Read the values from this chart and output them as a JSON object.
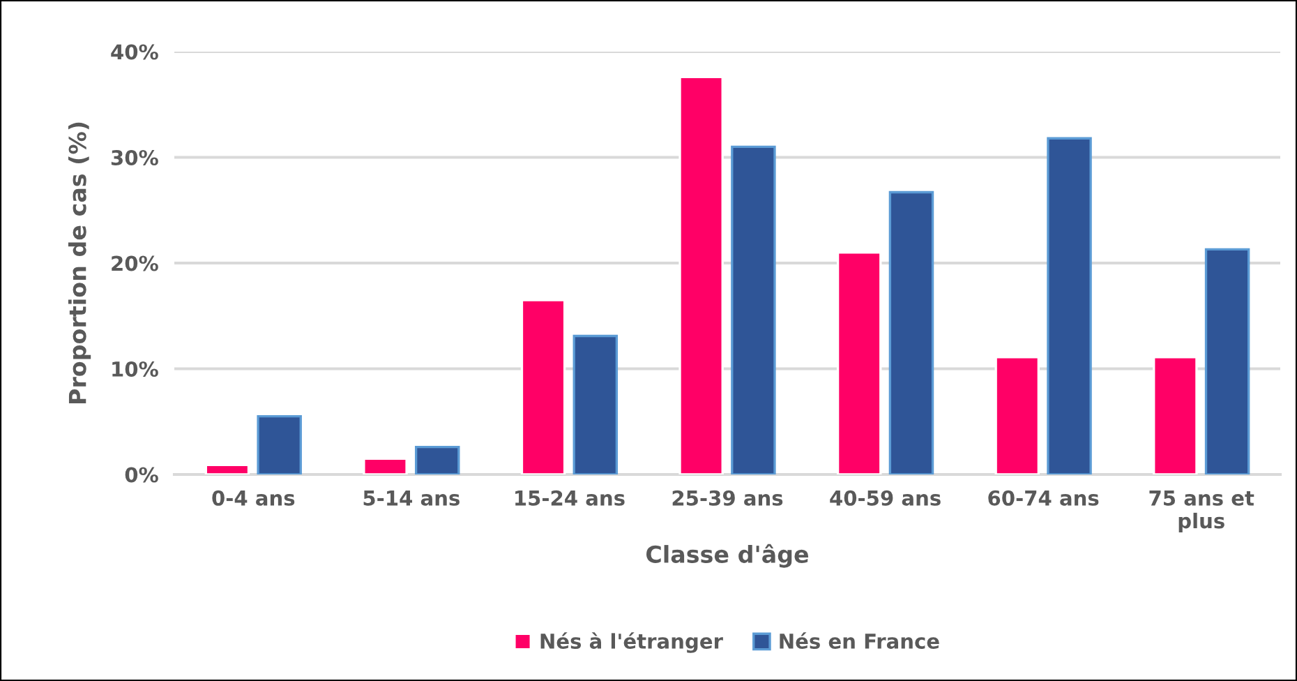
{
  "chart_data": {
    "type": "bar",
    "xlabel": "Classe d'âge",
    "ylabel": "Proportion de cas (%)",
    "categories": [
      "0-4 ans",
      "5-14 ans",
      "15-24 ans",
      "25-39 ans",
      "40-59 ans",
      "60-74 ans",
      "75 ans et\nplus"
    ],
    "series": [
      {
        "name": "Nés à l'étranger",
        "color": "#ff0066",
        "values": [
          0.9,
          1.5,
          16.5,
          37.6,
          21.0,
          11.1,
          11.1
        ]
      },
      {
        "name": "Nés en France",
        "color": "#2f5597",
        "values": [
          5.5,
          2.6,
          13.1,
          31.0,
          26.7,
          31.8,
          21.3
        ]
      }
    ],
    "ylim": [
      0,
      40
    ],
    "yticks": [
      {
        "value": 0,
        "label": "0%"
      },
      {
        "value": 10,
        "label": "10%"
      },
      {
        "value": 20,
        "label": "20%"
      },
      {
        "value": 30,
        "label": "30%"
      },
      {
        "value": 40,
        "label": "40%"
      }
    ],
    "grid": "y",
    "legend": "bottom"
  }
}
